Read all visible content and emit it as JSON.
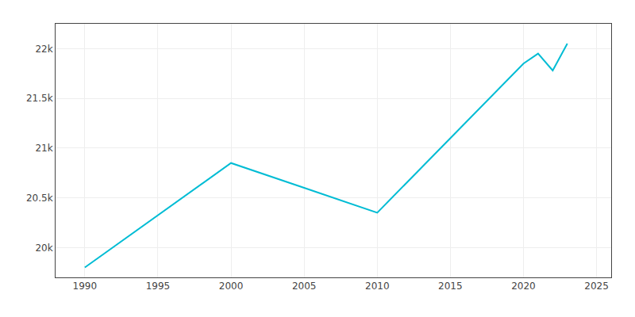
{
  "chart_data": {
    "type": "line",
    "x": [
      1990,
      2000,
      2005,
      2010,
      2020,
      2021,
      2022,
      2023
    ],
    "values": [
      19800,
      20850,
      20600,
      20350,
      21850,
      21950,
      21780,
      22050
    ],
    "color": "#00bcd4",
    "xlim": [
      1988,
      2026
    ],
    "xticks": [
      1990,
      1995,
      2000,
      2005,
      2010,
      2015,
      2020,
      2025
    ],
    "ylim": [
      19700,
      22250
    ],
    "yticks": [
      {
        "value": 20000,
        "label": "20k"
      },
      {
        "value": 20500,
        "label": "20.5k"
      },
      {
        "value": 21000,
        "label": "21k"
      },
      {
        "value": 21500,
        "label": "21.5k"
      },
      {
        "value": 22000,
        "label": "22k"
      }
    ],
    "grid": true
  }
}
